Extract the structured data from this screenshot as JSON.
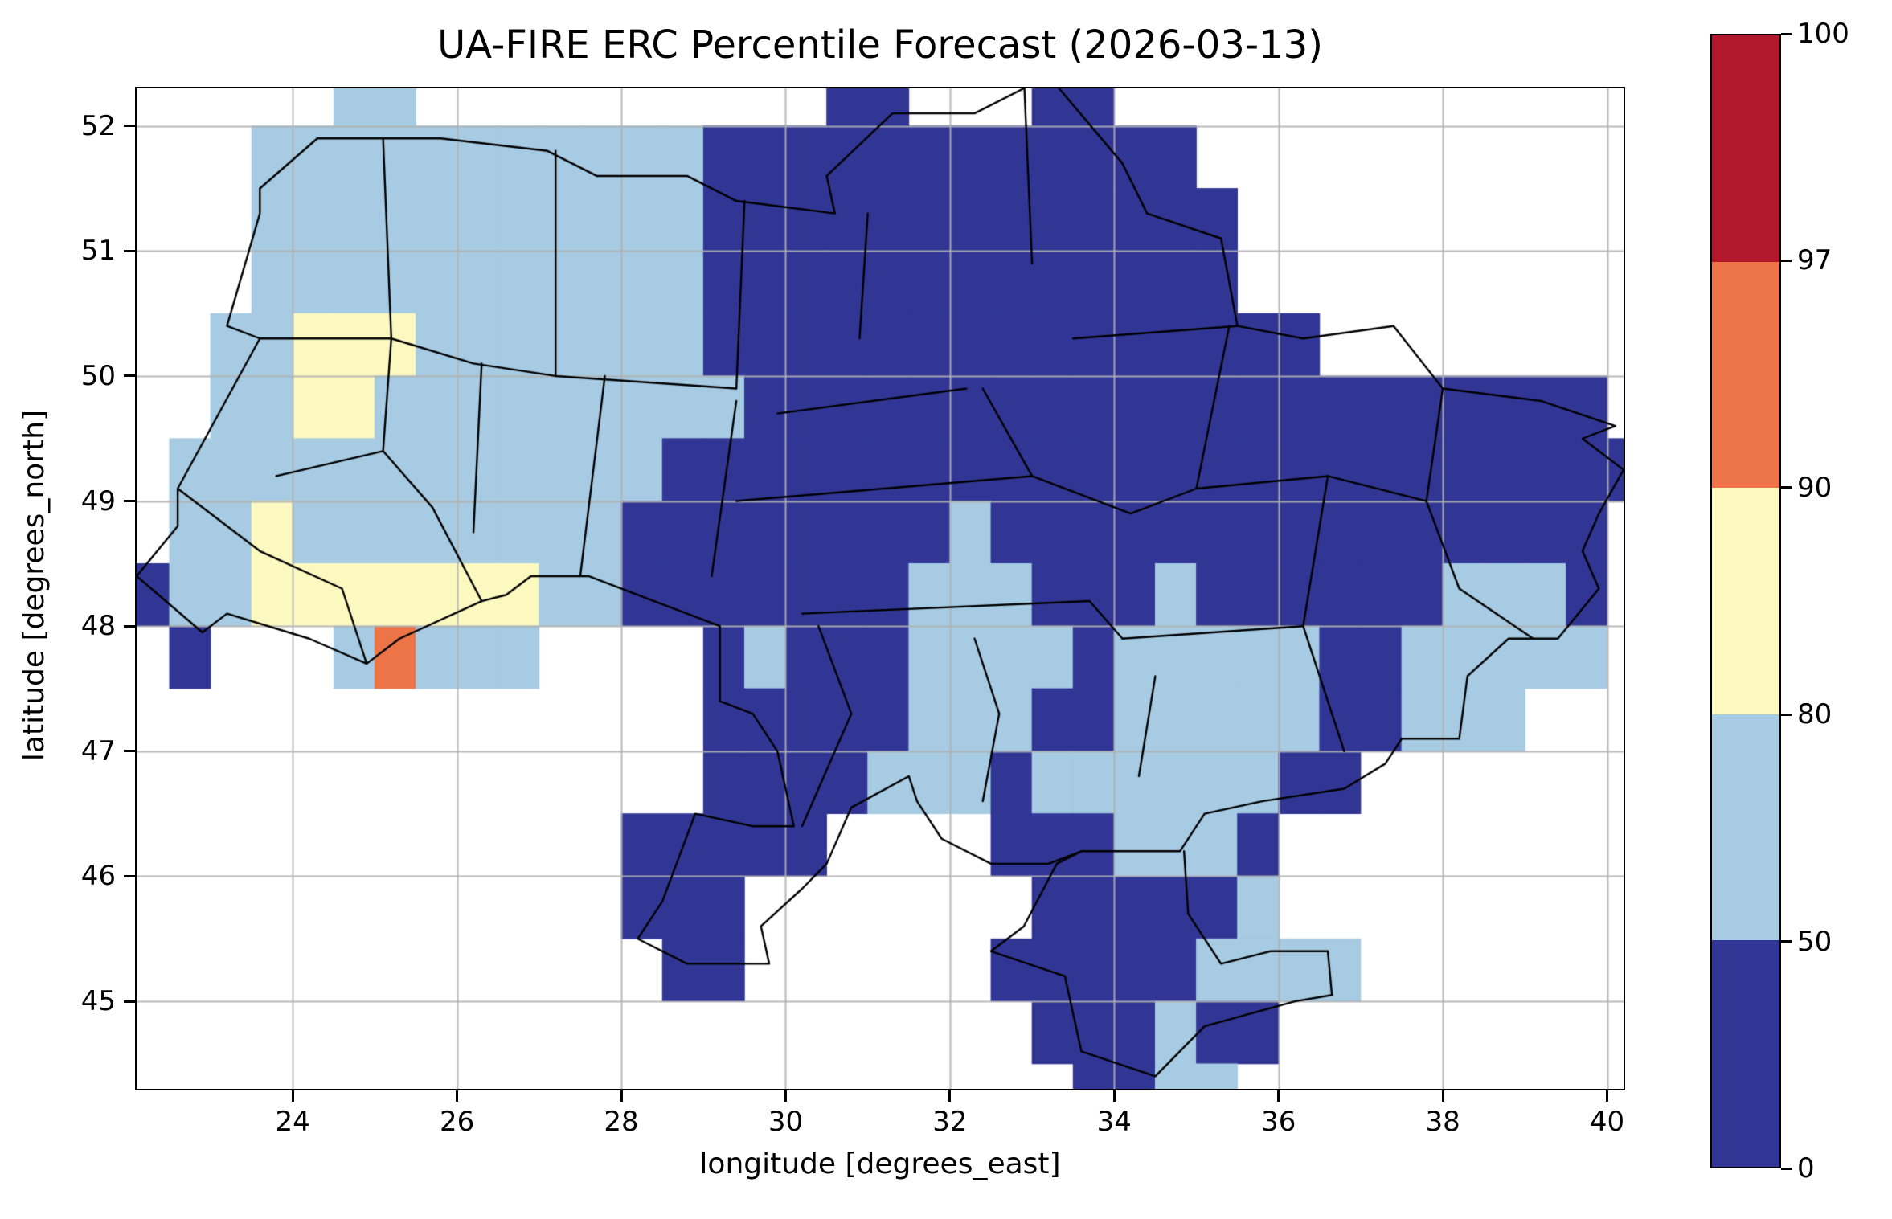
{
  "title": "UA-FIRE ERC Percentile Forecast (2026-03-13)",
  "axes": {
    "xlabel": "longitude [degrees_east]",
    "ylabel": "latitude [degrees_north]",
    "xticks": [
      24,
      26,
      28,
      30,
      32,
      34,
      36,
      38,
      40
    ],
    "yticks": [
      45,
      46,
      47,
      48,
      49,
      50,
      51,
      52
    ]
  },
  "colorbar": {
    "ticks": [
      0,
      50,
      80,
      90,
      97,
      100
    ],
    "colors_bottom_to_top": [
      "#313695",
      "#a6cbe3",
      "#fbf8c0",
      "#ec7447",
      "#b2182b"
    ]
  },
  "chart_data": {
    "type": "heatmap",
    "title": "UA-FIRE ERC Percentile Forecast (2026-03-13)",
    "xlabel": "longitude [degrees_east]",
    "ylabel": "latitude [degrees_north]",
    "xlim": [
      22.1,
      40.2
    ],
    "ylim": [
      44.3,
      52.3
    ],
    "grid_on": true,
    "legend": {
      "levels": [
        0,
        50,
        80,
        90,
        97,
        100
      ],
      "colors": [
        "#313695",
        "#a6cbe3",
        "#fbf8c0",
        "#ec7447",
        "#b2182b"
      ],
      "meaning": "ERC percentile classes: 0-50 dark blue, 50-80 light blue, 80-90 pale yellow, 90-97 orange, 97-100 dark red"
    },
    "cell_size_deg": 0.5,
    "grid_origin": {
      "lon": 22.0,
      "lat_top": 52.5
    },
    "cell_codes": {
      "a": "0-50",
      "2": "50-80",
      "3": "80-90",
      "4": "90-97",
      ".": "no-data"
    },
    "rows": [
      ".....22..........aa...aa.............",
      "...22222222222aaaaaaaaaaaa...........",
      "...22222222222aaaaaaaaaaaaa..........",
      "...22222222222aaaaaaaaaaaaa..........",
      "..223332222222aaaaaaaaaaaaaaa........",
      "..2233222222222aaaaaaaaaaaaaaaaaaaaa.",
      ".222222222222aaaaaaaaaaaaaaaaaaaaaaaa",
      ".22322222222aaaaaaaa2aaaaaaaaaaaaaaa.",
      "a22333333322aaaaaaa222aaa2aaaaaa222a.",
      ".a...24222....a2aaa2222a22222aa22222.",
      "..............aaaaa222aa22222aa222...",
      "..............aaaa222a222222aa.......",
      "............aaaaa....aaa222a.........",
      "............aaa.......aaaaa2.........",
      ".............aa......aaaaa2222.......",
      "......................aaa2aa.........",
      ".......................aa22.........."
    ]
  },
  "map": {
    "boundary_color": "#000000",
    "boundaries": [
      [
        [
          22.6,
          49.1
        ],
        [
          23.6,
          50.3
        ],
        [
          23.2,
          50.4
        ],
        [
          23.6,
          51.3
        ],
        [
          23.6,
          51.5
        ],
        [
          24.3,
          51.9
        ],
        [
          25.8,
          51.9
        ],
        [
          27.1,
          51.8
        ],
        [
          27.7,
          51.6
        ],
        [
          28.8,
          51.6
        ],
        [
          29.4,
          51.4
        ],
        [
          30.6,
          51.3
        ],
        [
          30.5,
          51.6
        ],
        [
          31.3,
          52.1
        ],
        [
          32.3,
          52.1
        ],
        [
          33.2,
          52.4
        ],
        [
          34.1,
          51.7
        ],
        [
          34.4,
          51.3
        ],
        [
          35.3,
          51.1
        ],
        [
          35.5,
          50.4
        ],
        [
          36.3,
          50.3
        ],
        [
          37.4,
          50.4
        ],
        [
          38.0,
          49.9
        ],
        [
          39.2,
          49.8
        ],
        [
          40.1,
          49.6
        ],
        [
          39.7,
          49.5
        ],
        [
          40.2,
          49.25
        ],
        [
          39.9,
          48.9
        ],
        [
          39.7,
          48.6
        ],
        [
          39.9,
          48.3
        ],
        [
          39.4,
          47.9
        ],
        [
          38.8,
          47.9
        ],
        [
          38.3,
          47.6
        ],
        [
          38.2,
          47.1
        ],
        [
          37.5,
          47.1
        ]
      ],
      [
        [
          37.5,
          47.1
        ],
        [
          37.3,
          46.9
        ],
        [
          36.8,
          46.7
        ],
        [
          35.8,
          46.6
        ],
        [
          35.1,
          46.5
        ],
        [
          34.8,
          46.2
        ],
        [
          33.6,
          46.2
        ],
        [
          33.2,
          46.1
        ],
        [
          32.5,
          46.1
        ],
        [
          31.9,
          46.3
        ],
        [
          31.6,
          46.6
        ],
        [
          31.5,
          46.8
        ],
        [
          30.8,
          46.55
        ],
        [
          30.5,
          46.1
        ],
        [
          30.2,
          45.9
        ],
        [
          29.7,
          45.6
        ],
        [
          29.8,
          45.3
        ],
        [
          28.8,
          45.3
        ],
        [
          28.2,
          45.5
        ],
        [
          28.5,
          45.8
        ],
        [
          28.9,
          46.5
        ],
        [
          29.6,
          46.4
        ],
        [
          30.1,
          46.4
        ],
        [
          29.9,
          47.0
        ],
        [
          29.6,
          47.3
        ],
        [
          29.2,
          47.4
        ],
        [
          29.2,
          48.0
        ],
        [
          28.4,
          48.2
        ],
        [
          27.6,
          48.4
        ],
        [
          26.9,
          48.4
        ],
        [
          26.6,
          48.25
        ],
        [
          26.3,
          48.2
        ],
        [
          25.3,
          47.9
        ],
        [
          24.9,
          47.7
        ],
        [
          24.2,
          47.9
        ],
        [
          23.2,
          48.1
        ],
        [
          22.9,
          47.95
        ],
        [
          22.1,
          48.4
        ],
        [
          22.6,
          48.8
        ],
        [
          22.6,
          49.1
        ]
      ],
      [
        [
          33.6,
          46.2
        ],
        [
          33.3,
          46.1
        ],
        [
          32.9,
          45.6
        ],
        [
          32.5,
          45.4
        ],
        [
          33.4,
          45.2
        ],
        [
          33.6,
          44.6
        ],
        [
          34.5,
          44.4
        ],
        [
          35.1,
          44.8
        ],
        [
          36.2,
          45.0
        ],
        [
          36.65,
          45.05
        ],
        [
          36.6,
          45.4
        ],
        [
          35.9,
          45.4
        ],
        [
          35.3,
          45.3
        ],
        [
          34.9,
          45.7
        ],
        [
          34.85,
          46.2
        ]
      ],
      [
        [
          25.2,
          50.3
        ],
        [
          25.1,
          51.9
        ]
      ],
      [
        [
          27.2,
          50.0
        ],
        [
          27.2,
          51.8
        ]
      ],
      [
        [
          29.4,
          49.9
        ],
        [
          29.5,
          51.4
        ]
      ],
      [
        [
          30.9,
          50.3
        ],
        [
          31.0,
          51.3
        ]
      ],
      [
        [
          33.0,
          50.9
        ],
        [
          32.9,
          52.4
        ]
      ],
      [
        [
          33.5,
          50.3
        ],
        [
          35.5,
          50.4
        ]
      ],
      [
        [
          23.6,
          50.3
        ],
        [
          25.2,
          50.3
        ]
      ],
      [
        [
          25.2,
          50.3
        ],
        [
          26.2,
          50.1
        ],
        [
          27.2,
          50.0
        ]
      ],
      [
        [
          25.1,
          49.4
        ],
        [
          25.2,
          50.3
        ]
      ],
      [
        [
          26.2,
          48.75
        ],
        [
          26.3,
          50.1
        ]
      ],
      [
        [
          27.5,
          48.4
        ],
        [
          27.8,
          50.0
        ]
      ],
      [
        [
          23.8,
          49.2
        ],
        [
          25.1,
          49.4
        ]
      ],
      [
        [
          25.1,
          49.4
        ],
        [
          25.7,
          48.95
        ],
        [
          26.3,
          48.2
        ]
      ],
      [
        [
          22.6,
          49.1
        ],
        [
          23.6,
          48.6
        ],
        [
          24.6,
          48.3
        ],
        [
          24.9,
          47.7
        ]
      ],
      [
        [
          29.1,
          48.4
        ],
        [
          29.4,
          49.8
        ]
      ],
      [
        [
          29.9,
          49.7
        ],
        [
          32.2,
          49.9
        ]
      ],
      [
        [
          32.4,
          49.9
        ],
        [
          33.0,
          49.2
        ]
      ],
      [
        [
          29.4,
          49.0
        ],
        [
          33.0,
          49.2
        ]
      ],
      [
        [
          35.0,
          49.1
        ],
        [
          35.4,
          50.4
        ]
      ],
      [
        [
          33.0,
          49.2
        ],
        [
          34.2,
          48.9
        ],
        [
          35.0,
          49.1
        ]
      ],
      [
        [
          37.8,
          49.0
        ],
        [
          38.0,
          49.9
        ]
      ],
      [
        [
          36.6,
          49.2
        ],
        [
          37.8,
          49.0
        ]
      ],
      [
        [
          37.8,
          49.0
        ],
        [
          38.2,
          48.3
        ],
        [
          39.1,
          47.9
        ]
      ],
      [
        [
          35.0,
          49.1
        ],
        [
          36.6,
          49.2
        ]
      ],
      [
        [
          36.6,
          49.2
        ],
        [
          36.3,
          48.0
        ]
      ],
      [
        [
          30.2,
          48.1
        ],
        [
          33.7,
          48.2
        ]
      ],
      [
        [
          30.2,
          46.4
        ],
        [
          30.8,
          47.3
        ],
        [
          30.4,
          48.0
        ]
      ],
      [
        [
          32.4,
          46.6
        ],
        [
          32.6,
          47.3
        ],
        [
          32.3,
          47.9
        ]
      ],
      [
        [
          34.3,
          46.8
        ],
        [
          34.5,
          47.6
        ]
      ],
      [
        [
          34.1,
          47.9
        ],
        [
          36.3,
          48.0
        ]
      ],
      [
        [
          36.3,
          48.0
        ],
        [
          36.8,
          47.0
        ]
      ],
      [
        [
          27.2,
          50.0
        ],
        [
          29.4,
          49.9
        ]
      ],
      [
        [
          33.7,
          48.2
        ],
        [
          34.1,
          47.9
        ]
      ]
    ]
  }
}
